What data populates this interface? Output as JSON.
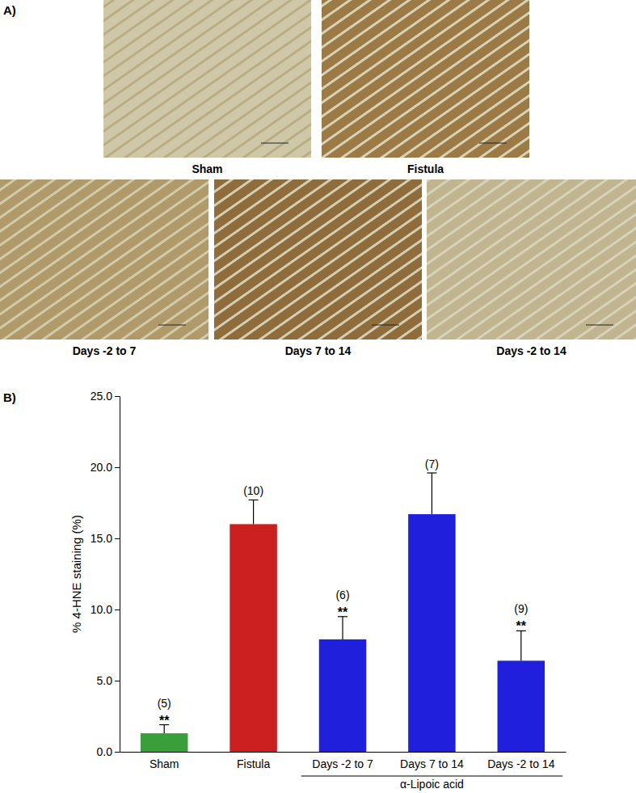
{
  "figure": {
    "panel_a_label": "A)",
    "panel_b_label": "B)",
    "micrographs": [
      "Sham",
      "Fistula",
      "Days -2 to 7",
      "Days 7 to 14",
      "Days -2 to 14"
    ]
  },
  "chart_data": {
    "type": "bar",
    "y_label": "% 4-HNE staining (%)",
    "categories": [
      "Sham",
      "Fistula",
      "Days -2 to 7",
      "Days 7 to 14",
      "Days -2 to 14"
    ],
    "values": [
      1.3,
      16.0,
      7.9,
      16.7,
      6.4
    ],
    "errors": [
      0.6,
      1.7,
      1.6,
      2.9,
      2.1
    ],
    "colors": [
      "#3a9e3a",
      "#cc1f1f",
      "#1f1fdc",
      "#1f1fdc",
      "#1f1fdc"
    ],
    "n_labels": [
      "(5)",
      "(10)",
      "(6)",
      "(7)",
      "(9)"
    ],
    "significance": [
      "**",
      null,
      "**",
      null,
      "**"
    ],
    "group": {
      "label": "α-Lipoic acid",
      "categories": [
        "Days -2 to 7",
        "Days 7 to 14",
        "Days -2 to 14"
      ]
    },
    "ylim": [
      0,
      25
    ],
    "yticks": [
      {
        "value": 0,
        "label": "0.0"
      },
      {
        "value": 5,
        "label": "5.0"
      },
      {
        "value": 10,
        "label": "10.0"
      },
      {
        "value": 15,
        "label": "15.0"
      },
      {
        "value": 20,
        "label": "20.0"
      },
      {
        "value": 25,
        "label": "25.0"
      }
    ]
  }
}
